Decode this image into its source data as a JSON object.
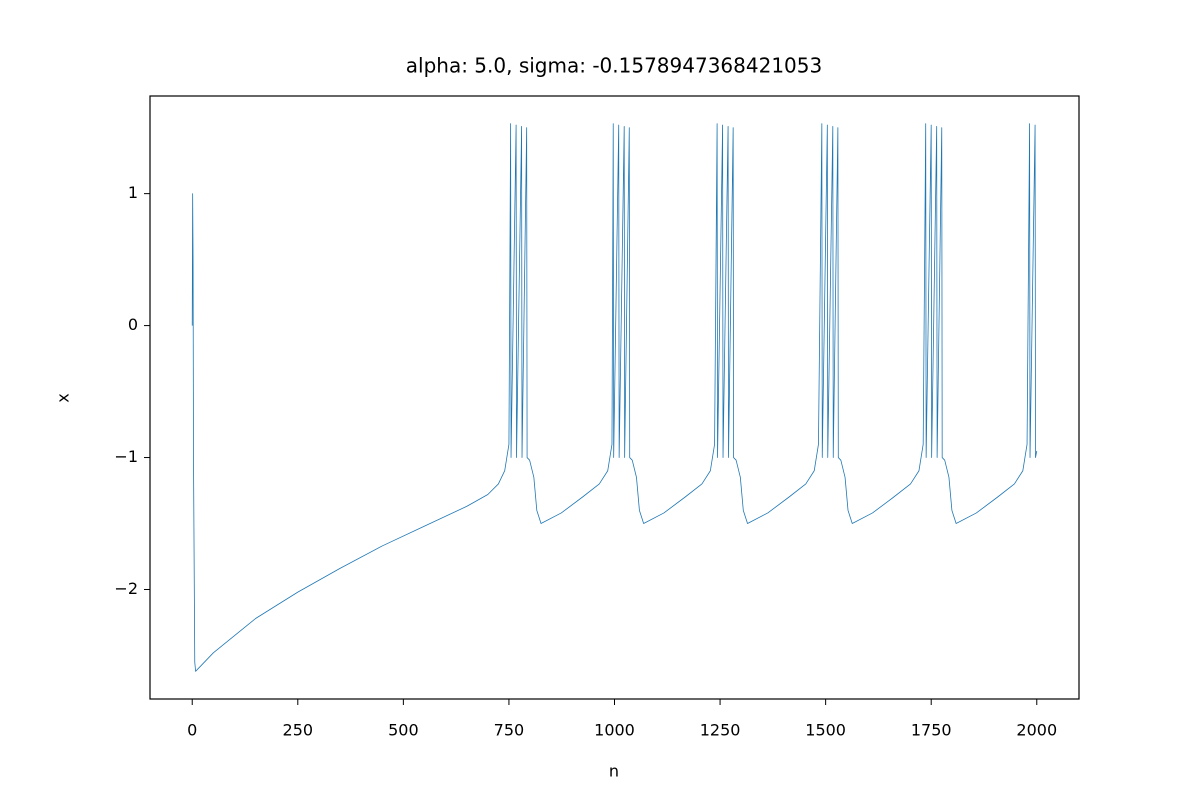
{
  "chart_data": {
    "type": "line",
    "title": "alpha: 5.0, sigma: -0.1578947368421053",
    "x_label": "n",
    "y_label": "x",
    "color": "#1f77b4",
    "xlim": [
      -100,
      2100
    ],
    "ylim": [
      -2.83,
      1.74
    ],
    "xticks": [
      0,
      250,
      500,
      750,
      1000,
      1250,
      1500,
      1750,
      2000
    ],
    "yticks": [
      {
        "value": -2,
        "label": "−2"
      },
      {
        "value": -1,
        "label": "−1"
      },
      0,
      1
    ],
    "x": [
      0,
      1,
      2,
      3,
      6,
      8,
      50,
      150,
      250,
      350,
      450,
      550,
      650,
      700,
      725,
      740,
      750,
      754,
      755,
      767,
      768,
      780,
      781,
      792,
      793,
      799,
      809,
      816,
      826,
      874,
      924,
      964,
      984,
      994,
      997,
      998,
      1010,
      1011,
      1023,
      1024,
      1035,
      1036,
      1042,
      1052,
      1059,
      1069,
      1117,
      1167,
      1207,
      1227,
      1237,
      1243,
      1244,
      1256,
      1257,
      1269,
      1270,
      1281,
      1282,
      1288,
      1298,
      1305,
      1315,
      1363,
      1413,
      1453,
      1473,
      1483,
      1491,
      1492,
      1504,
      1505,
      1517,
      1518,
      1529,
      1530,
      1536,
      1546,
      1553,
      1563,
      1611,
      1661,
      1701,
      1721,
      1731,
      1737,
      1738,
      1750,
      1751,
      1763,
      1764,
      1775,
      1776,
      1782,
      1792,
      1799,
      1809,
      1857,
      1907,
      1947,
      1967,
      1977,
      1983,
      1984,
      1996,
      1997,
      2000
    ],
    "values": [
      0,
      1,
      0.5,
      -1,
      -2.55,
      -2.62,
      -2.48,
      -2.22,
      -2.02,
      -1.84,
      -1.67,
      -1.52,
      -1.37,
      -1.28,
      -1.2,
      -1.1,
      -0.9,
      1.53,
      -1.0,
      1.52,
      -1.0,
      1.51,
      -1.0,
      1.5,
      -1.0,
      -1.02,
      -1.15,
      -1.4,
      -1.5,
      -1.42,
      -1.3,
      -1.2,
      -1.1,
      -0.9,
      1.53,
      -1.0,
      1.52,
      -1.0,
      1.51,
      -1.0,
      1.5,
      -1.0,
      -1.02,
      -1.15,
      -1.4,
      -1.5,
      -1.42,
      -1.3,
      -1.2,
      -1.1,
      -0.9,
      1.53,
      -1.0,
      1.52,
      -1.0,
      1.51,
      -1.0,
      1.5,
      -1.0,
      -1.02,
      -1.15,
      -1.4,
      -1.5,
      -1.42,
      -1.3,
      -1.2,
      -1.1,
      -0.9,
      1.53,
      -1.0,
      1.52,
      -1.0,
      1.51,
      -1.0,
      1.5,
      -1.0,
      -1.02,
      -1.15,
      -1.4,
      -1.5,
      -1.42,
      -1.3,
      -1.2,
      -1.1,
      -0.9,
      1.53,
      -1.0,
      1.52,
      -1.0,
      1.51,
      -1.0,
      1.5,
      -1.0,
      -1.02,
      -1.15,
      -1.4,
      -1.5,
      -1.42,
      -1.3,
      -1.2,
      -1.1,
      -0.9,
      1.53,
      -1.0,
      1.52,
      -1.0,
      -0.95
    ]
  }
}
